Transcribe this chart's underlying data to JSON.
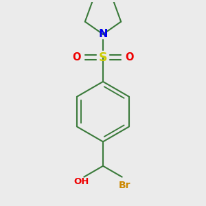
{
  "bg_color": "#ebebeb",
  "bond_color": "#3a7a3a",
  "bond_lw": 1.5,
  "atom_colors": {
    "N": "#0000ee",
    "S": "#cccc00",
    "O": "#ee0000",
    "Br": "#cc8800"
  },
  "font_size": 9.5,
  "figsize": [
    3.0,
    3.0
  ],
  "dpi": 100,
  "xlim": [
    -1.4,
    1.4
  ],
  "ylim": [
    -1.6,
    1.9
  ]
}
